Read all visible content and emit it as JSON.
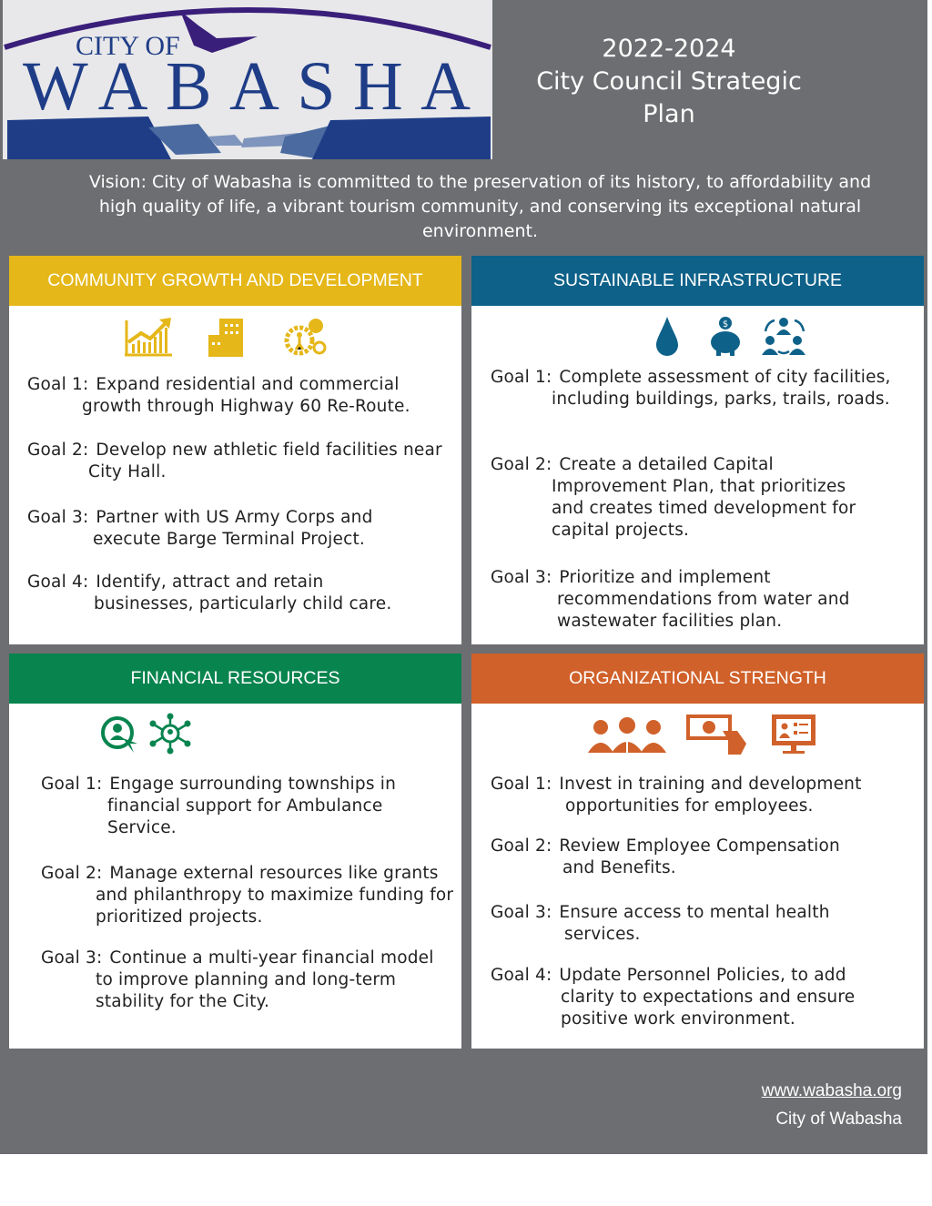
{
  "logo": {
    "line1": "CITY OF",
    "line2": "WABASHA"
  },
  "title": {
    "years": "2022-2024",
    "line1": "City Council Strategic",
    "line2": "Plan"
  },
  "vision": "Vision: City of Wabasha is committed to the preservation of its history, to affordability and high quality of life, a vibrant tourism community, and conserving its exceptional natural environment.",
  "colors": {
    "background": "#6d6e71",
    "community": "#e5b719",
    "infrastructure": "#0e6189",
    "financial": "#08844f",
    "organizational": "#d0612a"
  },
  "panels": [
    {
      "title": "COMMUNITY GROWTH AND DEVELOPMENT",
      "icons": [
        "growth-chart-icon",
        "buildings-icon",
        "gears-person-icon"
      ],
      "goals": [
        {
          "label": "Goal 1:",
          "text": "Expand residential and commercial growth through Highway 60 Re-Route."
        },
        {
          "label": "Goal 2:",
          "text": "Develop new athletic field facilities near City Hall."
        },
        {
          "label": "Goal 3:",
          "text": "Partner with US Army Corps and execute Barge Terminal Project."
        },
        {
          "label": "Goal 4:",
          "text": "Identify, attract and retain businesses, particularly child care."
        }
      ]
    },
    {
      "title": "SUSTAINABLE INFRASTRUCTURE",
      "icons": [
        "water-drop-icon",
        "piggy-bank-icon",
        "people-cycle-icon"
      ],
      "goals": [
        {
          "label": "Goal 1:",
          "text": "Complete assessment of city facilities, including buildings, parks, trails, roads."
        },
        {
          "label": "Goal 2:",
          "text": "Create a detailed Capital Improvement Plan, that prioritizes and creates timed development for capital projects."
        },
        {
          "label": "Goal 3:",
          "text": "Prioritize and implement recommendations from water and wastewater facilities plan."
        }
      ]
    },
    {
      "title": "FINANCIAL RESOURCES",
      "icons": [
        "person-target-icon",
        "network-icon"
      ],
      "goals": [
        {
          "label": "Goal 1:",
          "text": "Engage surrounding townships in financial support for Ambulance Service."
        },
        {
          "label": "Goal 2:",
          "text": "Manage external resources like grants and philanthropy to maximize funding for prioritized projects."
        },
        {
          "label": "Goal 3:",
          "text": "Continue a multi-year financial model to improve planning and long-term stability for the City."
        }
      ]
    },
    {
      "title": "ORGANIZATIONAL STRENGTH",
      "icons": [
        "team-icon",
        "money-hand-icon",
        "monitor-profile-icon"
      ],
      "goals": [
        {
          "label": "Goal 1:",
          "text": "Invest in training and development opportunities for employees."
        },
        {
          "label": "Goal 2:",
          "text": "Review Employee Compensation and Benefits."
        },
        {
          "label": "Goal 3:",
          "text": "Ensure access to mental health services."
        },
        {
          "label": "Goal 4:",
          "text": "Update Personnel Policies, to add clarity to expectations and ensure positive work environment."
        }
      ]
    }
  ],
  "footer": {
    "url": "www.wabasha.org",
    "name": "City of Wabasha"
  }
}
